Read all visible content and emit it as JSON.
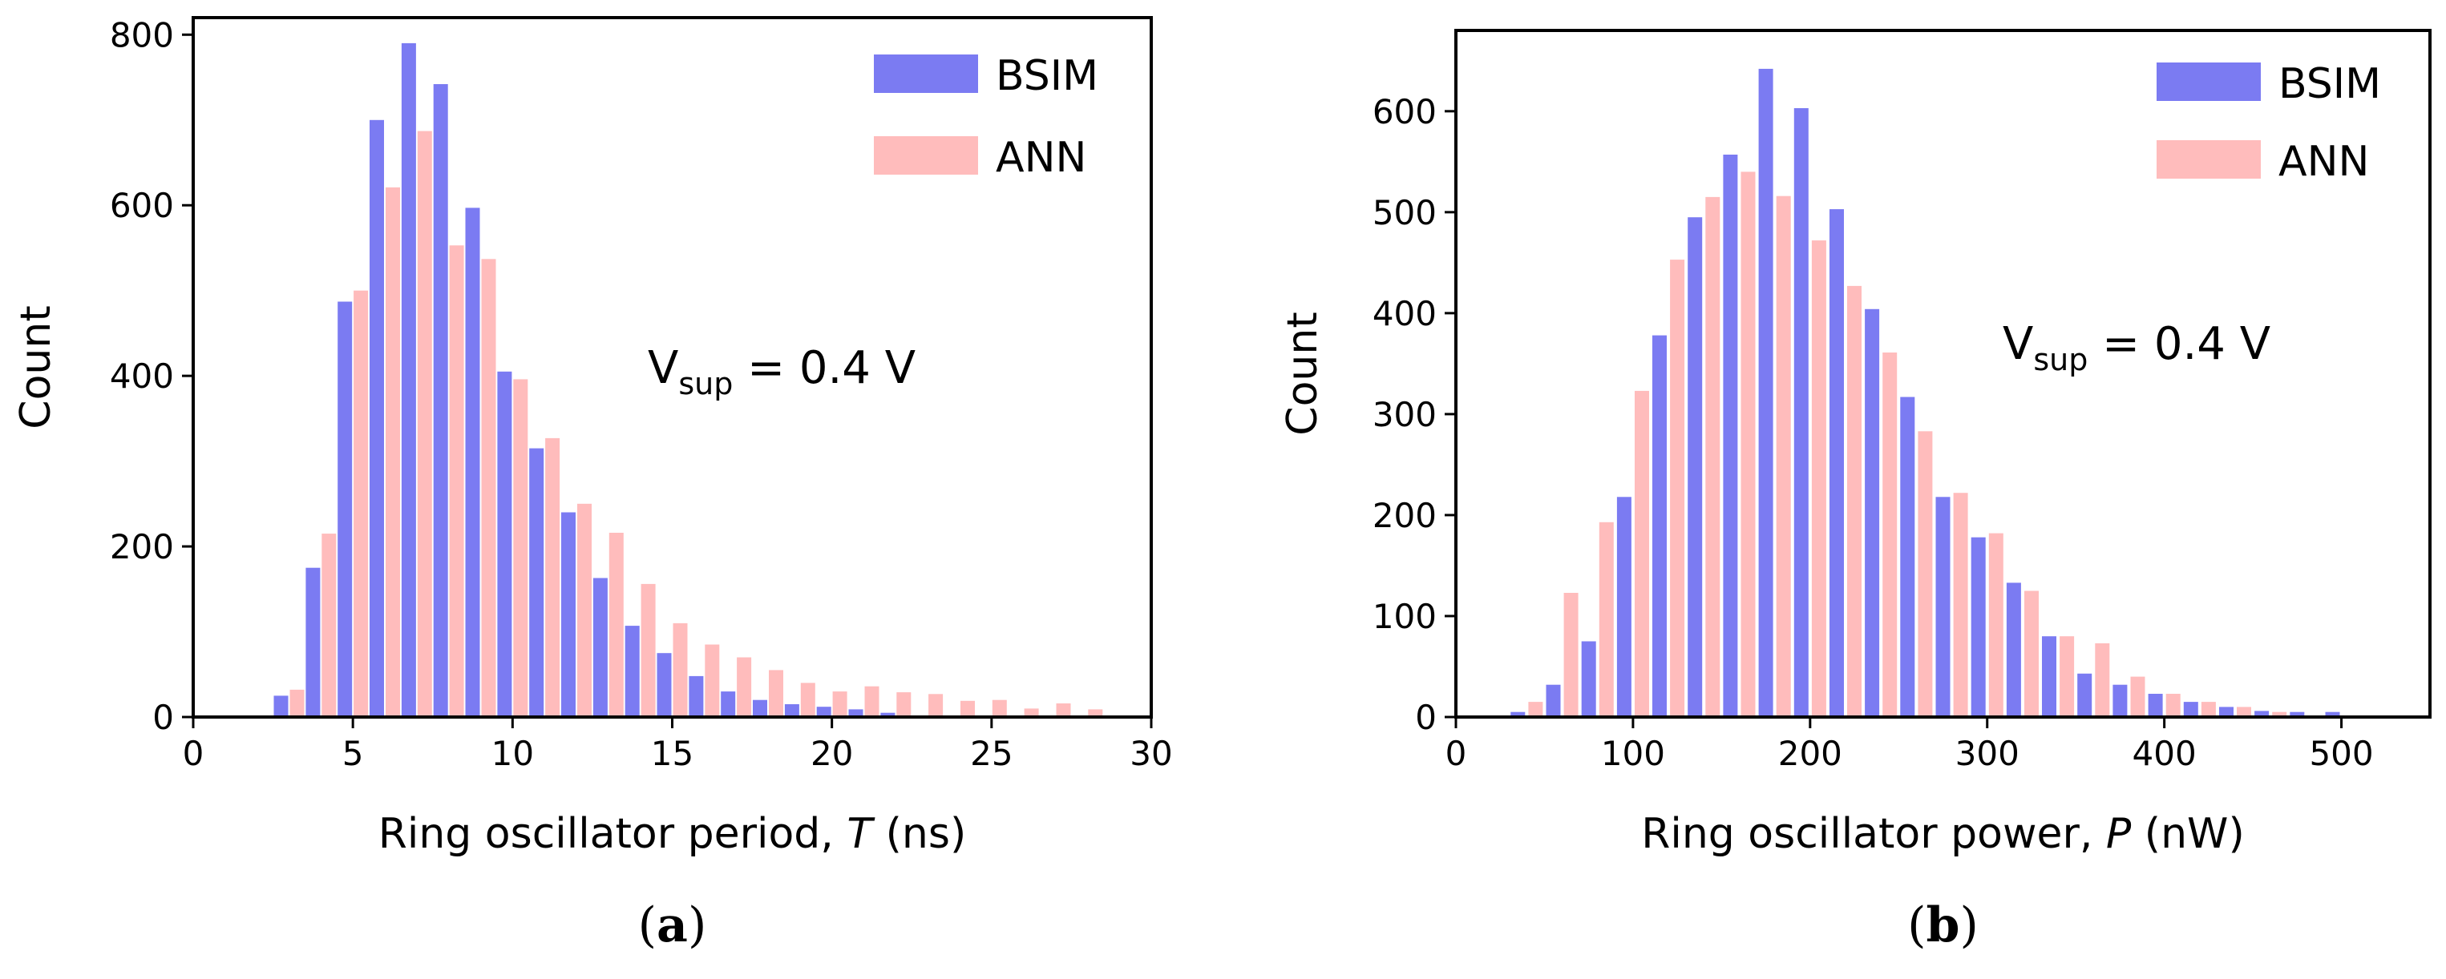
{
  "chart_data": [
    {
      "type": "bar",
      "panel": "(a)",
      "panel_prefix": "(",
      "panel_letter": "a",
      "panel_suffix": ")",
      "xlabel_prefix": "Ring oscillator period, ",
      "xlabel_var": "T",
      "xlabel_suffix": " (ns)",
      "ylabel": "Count",
      "xlim": [
        0,
        30
      ],
      "ylim": [
        0,
        820
      ],
      "xticks": [
        0,
        5,
        10,
        15,
        20,
        25,
        30
      ],
      "yticks": [
        0,
        200,
        400,
        600,
        800
      ],
      "legend_position": "top-right",
      "annotation": {
        "main": "V",
        "sub": "sup",
        "rest": " = 0.4 V"
      },
      "series": [
        {
          "name": "BSIM",
          "color": "#7b7bf2",
          "x": [
            2.75,
            3.75,
            4.75,
            5.75,
            6.75,
            7.75,
            8.75,
            9.75,
            10.75,
            11.75,
            12.75,
            13.75,
            14.75,
            15.75,
            16.75,
            17.75,
            18.75,
            19.75,
            20.75,
            21.75
          ],
          "values": [
            25,
            175,
            487,
            700,
            790,
            742,
            597,
            405,
            315,
            240,
            163,
            107,
            75,
            48,
            30,
            20,
            15,
            12,
            9,
            5
          ]
        },
        {
          "name": "ANN",
          "color": "#ffbcbc",
          "x": [
            3.25,
            4.25,
            5.25,
            6.25,
            7.25,
            8.25,
            9.25,
            10.25,
            11.25,
            12.25,
            13.25,
            14.25,
            15.25,
            16.25,
            17.25,
            18.25,
            19.25,
            20.25,
            21.25,
            22.25,
            23.25,
            24.25,
            25.25,
            26.25,
            27.25,
            28.25
          ],
          "values": [
            32,
            215,
            500,
            621,
            687,
            553,
            537,
            396,
            327,
            250,
            216,
            156,
            110,
            85,
            70,
            55,
            40,
            30,
            36,
            29,
            27,
            19,
            20,
            10,
            16,
            9
          ]
        }
      ]
    },
    {
      "type": "bar",
      "panel": "(b)",
      "panel_prefix": "(",
      "panel_letter": "b",
      "panel_suffix": ")",
      "xlabel_prefix": "Ring oscillator power, ",
      "xlabel_var": "P",
      "xlabel_suffix": " (nW)",
      "ylabel": "Count",
      "xlim": [
        0,
        550
      ],
      "ylim": [
        0,
        680
      ],
      "xticks": [
        0,
        100,
        200,
        300,
        400,
        500
      ],
      "yticks": [
        0,
        100,
        200,
        300,
        400,
        500,
        600
      ],
      "legend_position": "top-right",
      "annotation": {
        "main": "V",
        "sub": "sup",
        "rest": " = 0.4 V"
      },
      "series": [
        {
          "name": "BSIM",
          "color": "#7b7bf2",
          "x": [
            35,
            55,
            75,
            95,
            115,
            135,
            155,
            175,
            195,
            215,
            235,
            255,
            275,
            295,
            315,
            335,
            355,
            375,
            395,
            415,
            435,
            455,
            475,
            495
          ],
          "values": [
            5,
            32,
            75,
            218,
            378,
            495,
            557,
            642,
            603,
            503,
            404,
            317,
            218,
            178,
            133,
            80,
            43,
            32,
            23,
            15,
            10,
            6,
            5,
            5
          ]
        },
        {
          "name": "ANN",
          "color": "#ffbcbc",
          "x": [
            45,
            65,
            85,
            105,
            125,
            145,
            165,
            185,
            205,
            225,
            245,
            265,
            285,
            305,
            325,
            345,
            365,
            385,
            405,
            425,
            445,
            465
          ],
          "values": [
            15,
            123,
            193,
            323,
            453,
            515,
            540,
            516,
            472,
            427,
            361,
            283,
            222,
            182,
            125,
            80,
            73,
            40,
            23,
            15,
            10,
            5
          ]
        }
      ]
    }
  ]
}
